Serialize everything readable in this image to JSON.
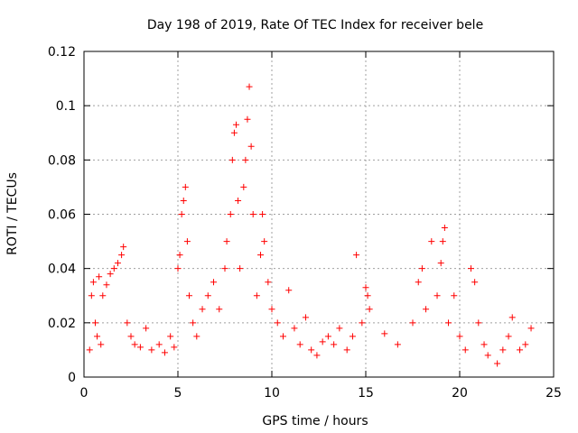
{
  "chart_data": {
    "type": "scatter",
    "title": "Day 198 of 2019, Rate Of TEC Index for receiver bele",
    "xlabel": "GPS time / hours",
    "ylabel": "ROTI / TECUs",
    "xlim": [
      0,
      25
    ],
    "ylim": [
      0,
      0.12
    ],
    "xticks": [
      0,
      5,
      10,
      15,
      20,
      25
    ],
    "xtick_labels": [
      "0",
      "5",
      "10",
      "15",
      "20",
      "25"
    ],
    "yticks": [
      0,
      0.02,
      0.04,
      0.06,
      0.08,
      0.1,
      0.12
    ],
    "ytick_labels": [
      "0",
      "0.02",
      "0.04",
      "0.06",
      "0.08",
      "0.1",
      "0.12"
    ],
    "grid": true,
    "marker": "+",
    "series_color": "#ff0000",
    "series": [
      {
        "name": "ROTI",
        "points": [
          [
            0.3,
            0.01
          ],
          [
            0.4,
            0.03
          ],
          [
            0.5,
            0.035
          ],
          [
            0.6,
            0.02
          ],
          [
            0.7,
            0.015
          ],
          [
            0.8,
            0.037
          ],
          [
            0.9,
            0.012
          ],
          [
            1.0,
            0.03
          ],
          [
            1.2,
            0.034
          ],
          [
            1.4,
            0.038
          ],
          [
            1.6,
            0.04
          ],
          [
            1.8,
            0.042
          ],
          [
            2.0,
            0.045
          ],
          [
            2.1,
            0.048
          ],
          [
            2.3,
            0.02
          ],
          [
            2.5,
            0.015
          ],
          [
            2.7,
            0.012
          ],
          [
            3.0,
            0.011
          ],
          [
            3.3,
            0.018
          ],
          [
            3.6,
            0.01
          ],
          [
            4.0,
            0.012
          ],
          [
            4.3,
            0.009
          ],
          [
            4.6,
            0.015
          ],
          [
            4.8,
            0.011
          ],
          [
            5.0,
            0.04
          ],
          [
            5.1,
            0.045
          ],
          [
            5.2,
            0.06
          ],
          [
            5.3,
            0.065
          ],
          [
            5.4,
            0.07
          ],
          [
            5.5,
            0.05
          ],
          [
            5.6,
            0.03
          ],
          [
            5.8,
            0.02
          ],
          [
            6.0,
            0.015
          ],
          [
            6.3,
            0.025
          ],
          [
            6.6,
            0.03
          ],
          [
            6.9,
            0.035
          ],
          [
            7.2,
            0.025
          ],
          [
            7.5,
            0.04
          ],
          [
            7.6,
            0.05
          ],
          [
            7.8,
            0.06
          ],
          [
            7.9,
            0.08
          ],
          [
            8.0,
            0.09
          ],
          [
            8.1,
            0.093
          ],
          [
            8.2,
            0.065
          ],
          [
            8.3,
            0.04
          ],
          [
            8.5,
            0.07
          ],
          [
            8.6,
            0.08
          ],
          [
            8.7,
            0.095
          ],
          [
            8.8,
            0.107
          ],
          [
            8.9,
            0.085
          ],
          [
            9.0,
            0.06
          ],
          [
            9.2,
            0.03
          ],
          [
            9.4,
            0.045
          ],
          [
            9.5,
            0.06
          ],
          [
            9.6,
            0.05
          ],
          [
            9.8,
            0.035
          ],
          [
            10.0,
            0.025
          ],
          [
            10.3,
            0.02
          ],
          [
            10.6,
            0.015
          ],
          [
            10.9,
            0.032
          ],
          [
            11.2,
            0.018
          ],
          [
            11.5,
            0.012
          ],
          [
            11.8,
            0.022
          ],
          [
            12.1,
            0.01
          ],
          [
            12.4,
            0.008
          ],
          [
            12.7,
            0.013
          ],
          [
            13.0,
            0.015
          ],
          [
            13.3,
            0.012
          ],
          [
            13.6,
            0.018
          ],
          [
            14.0,
            0.01
          ],
          [
            14.3,
            0.015
          ],
          [
            14.5,
            0.045
          ],
          [
            14.8,
            0.02
          ],
          [
            15.0,
            0.033
          ],
          [
            15.1,
            0.03
          ],
          [
            15.2,
            0.025
          ],
          [
            16.0,
            0.016
          ],
          [
            16.7,
            0.012
          ],
          [
            17.5,
            0.02
          ],
          [
            17.8,
            0.035
          ],
          [
            18.0,
            0.04
          ],
          [
            18.2,
            0.025
          ],
          [
            18.5,
            0.05
          ],
          [
            18.8,
            0.03
          ],
          [
            19.0,
            0.042
          ],
          [
            19.1,
            0.05
          ],
          [
            19.2,
            0.055
          ],
          [
            19.4,
            0.02
          ],
          [
            19.7,
            0.03
          ],
          [
            20.0,
            0.015
          ],
          [
            20.3,
            0.01
          ],
          [
            20.6,
            0.04
          ],
          [
            20.8,
            0.035
          ],
          [
            21.0,
            0.02
          ],
          [
            21.3,
            0.012
          ],
          [
            21.5,
            0.008
          ],
          [
            22.0,
            0.005
          ],
          [
            22.3,
            0.01
          ],
          [
            22.6,
            0.015
          ],
          [
            22.8,
            0.022
          ],
          [
            23.2,
            0.01
          ],
          [
            23.5,
            0.012
          ],
          [
            23.8,
            0.018
          ]
        ]
      }
    ]
  }
}
